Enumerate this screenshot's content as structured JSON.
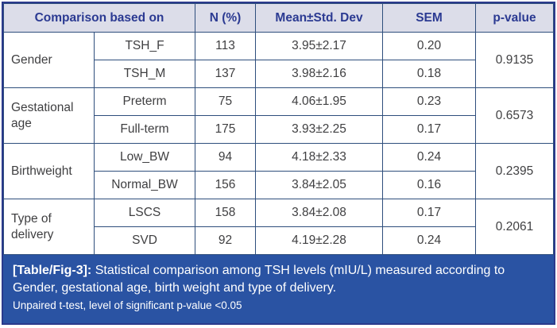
{
  "table": {
    "headers": {
      "comparison": "Comparison based on",
      "n": "N (%)",
      "mean_sd": "Mean±Std. Dev",
      "sem": "SEM",
      "p_value": "p-value"
    },
    "groups": [
      {
        "label": "Gender",
        "p_value": "0.9135",
        "rows": [
          {
            "subgroup": "TSH_F",
            "n": "113",
            "mean_sd": "3.95±2.17",
            "sem": "0.20"
          },
          {
            "subgroup": "TSH_M",
            "n": "137",
            "mean_sd": "3.98±2.16",
            "sem": "0.18"
          }
        ]
      },
      {
        "label": "Gestational age",
        "p_value": "0.6573",
        "rows": [
          {
            "subgroup": "Preterm",
            "n": "75",
            "mean_sd": "4.06±1.95",
            "sem": "0.23"
          },
          {
            "subgroup": "Full-term",
            "n": "175",
            "mean_sd": "3.93±2.25",
            "sem": "0.17"
          }
        ]
      },
      {
        "label": "Birthweight",
        "p_value": "0.2395",
        "rows": [
          {
            "subgroup": "Low_BW",
            "n": "94",
            "mean_sd": "4.18±2.33",
            "sem": "0.24"
          },
          {
            "subgroup": "Normal_BW",
            "n": "156",
            "mean_sd": "3.84±2.05",
            "sem": "0.16"
          }
        ]
      },
      {
        "label": "Type of delivery",
        "p_value": "0.2061",
        "rows": [
          {
            "subgroup": "LSCS",
            "n": "158",
            "mean_sd": "3.84±2.08",
            "sem": "0.17"
          },
          {
            "subgroup": "SVD",
            "n": "92",
            "mean_sd": "4.19±2.28",
            "sem": "0.24"
          }
        ]
      }
    ]
  },
  "caption": {
    "label": "[Table/Fig-3]:",
    "text": " Statistical comparison among TSH levels (mIU/L) measured according to Gender, gestational age, birth weight and type of delivery.",
    "note": "Unpaired t-test, level of significant p-value <0.05"
  },
  "colors": {
    "outer_border": "#2b3a8c",
    "grid_border": "#2e4e7c",
    "header_bg": "#dcdde9",
    "header_text": "#2b3a92",
    "body_text": "#3f3f41",
    "caption_bg": "#2a53a3",
    "caption_text": "#ffffff"
  }
}
